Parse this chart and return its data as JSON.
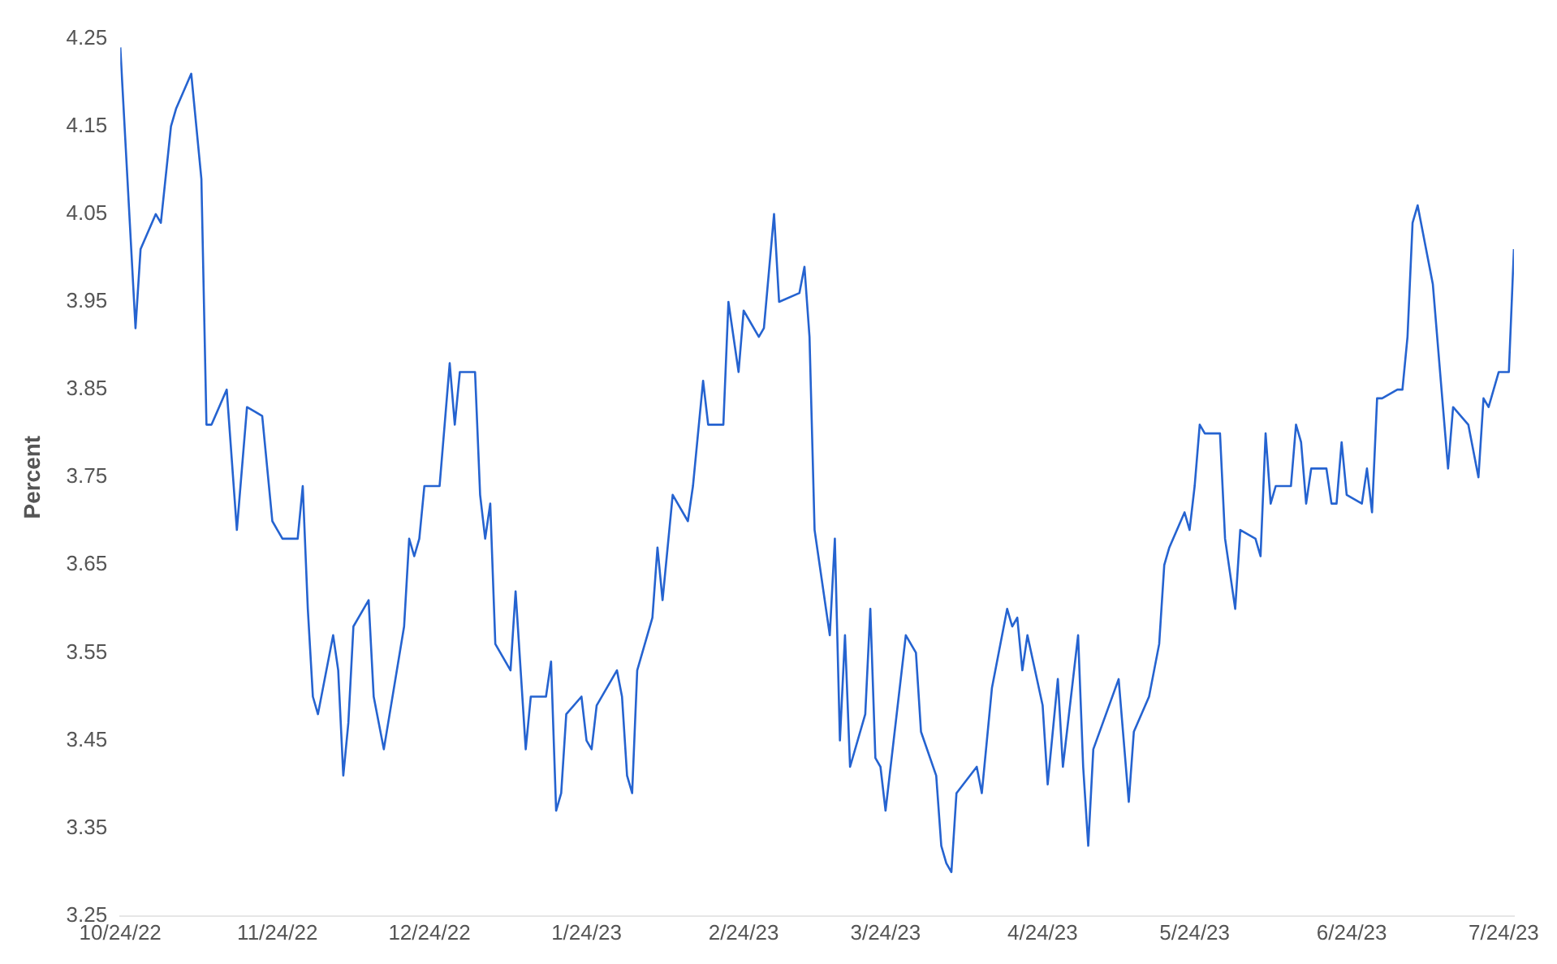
{
  "chart_data": {
    "type": "line",
    "ylabel": "Percent",
    "x": [
      "2022-10-24",
      "2022-10-27",
      "2022-10-28",
      "2022-10-31",
      "2022-11-01",
      "2022-11-03",
      "2022-11-04",
      "2022-11-07",
      "2022-11-09",
      "2022-11-10",
      "2022-11-11",
      "2022-11-14",
      "2022-11-16",
      "2022-11-18",
      "2022-11-21",
      "2022-11-23",
      "2022-11-24",
      "2022-11-25",
      "2022-11-28",
      "2022-11-29",
      "2022-11-30",
      "2022-12-01",
      "2022-12-02",
      "2022-12-05",
      "2022-12-06",
      "2022-12-07",
      "2022-12-08",
      "2022-12-09",
      "2022-12-12",
      "2022-12-13",
      "2022-12-15",
      "2022-12-19",
      "2022-12-20",
      "2022-12-21",
      "2022-12-22",
      "2022-12-23",
      "2022-12-26",
      "2022-12-28",
      "2022-12-29",
      "2022-12-30",
      "2023-01-02",
      "2023-01-03",
      "2023-01-04",
      "2023-01-05",
      "2023-01-06",
      "2023-01-09",
      "2023-01-10",
      "2023-01-12",
      "2023-01-13",
      "2023-01-16",
      "2023-01-17",
      "2023-01-18",
      "2023-01-19",
      "2023-01-20",
      "2023-01-23",
      "2023-01-24",
      "2023-01-25",
      "2023-01-26",
      "2023-01-30",
      "2023-01-31",
      "2023-02-01",
      "2023-02-02",
      "2023-02-03",
      "2023-02-06",
      "2023-02-07",
      "2023-02-08",
      "2023-02-10",
      "2023-02-13",
      "2023-02-14",
      "2023-02-16",
      "2023-02-17",
      "2023-02-20",
      "2023-02-21",
      "2023-02-23",
      "2023-02-24",
      "2023-02-27",
      "2023-02-28",
      "2023-03-02",
      "2023-03-03",
      "2023-03-07",
      "2023-03-08",
      "2023-03-09",
      "2023-03-10",
      "2023-03-13",
      "2023-03-14",
      "2023-03-15",
      "2023-03-16",
      "2023-03-17",
      "2023-03-20",
      "2023-03-21",
      "2023-03-22",
      "2023-03-23",
      "2023-03-24",
      "2023-03-28",
      "2023-03-30",
      "2023-03-31",
      "2023-04-03",
      "2023-04-04",
      "2023-04-05",
      "2023-04-06",
      "2023-04-07",
      "2023-04-11",
      "2023-04-12",
      "2023-04-14",
      "2023-04-17",
      "2023-04-18",
      "2023-04-19",
      "2023-04-20",
      "2023-04-21",
      "2023-04-24",
      "2023-04-25",
      "2023-04-27",
      "2023-04-28",
      "2023-05-01",
      "2023-05-02",
      "2023-05-03",
      "2023-05-04",
      "2023-05-09",
      "2023-05-11",
      "2023-05-12",
      "2023-05-15",
      "2023-05-17",
      "2023-05-18",
      "2023-05-19",
      "2023-05-22",
      "2023-05-23",
      "2023-05-24",
      "2023-05-25",
      "2023-05-26",
      "2023-05-29",
      "2023-05-30",
      "2023-06-01",
      "2023-06-02",
      "2023-06-05",
      "2023-06-06",
      "2023-06-07",
      "2023-06-08",
      "2023-06-09",
      "2023-06-12",
      "2023-06-13",
      "2023-06-14",
      "2023-06-15",
      "2023-06-16",
      "2023-06-19",
      "2023-06-20",
      "2023-06-21",
      "2023-06-22",
      "2023-06-23",
      "2023-06-26",
      "2023-06-27",
      "2023-06-28",
      "2023-06-29",
      "2023-06-30",
      "2023-07-03",
      "2023-07-04",
      "2023-07-05",
      "2023-07-06",
      "2023-07-07",
      "2023-07-10",
      "2023-07-13",
      "2023-07-14",
      "2023-07-17",
      "2023-07-19",
      "2023-07-20",
      "2023-07-21",
      "2023-07-23",
      "2023-07-24",
      "2023-07-25",
      "2023-07-26"
    ],
    "series": [
      {
        "color": "#2563d0",
        "values": [
          4.24,
          3.92,
          4.01,
          4.05,
          4.04,
          4.15,
          4.17,
          4.21,
          4.09,
          3.81,
          3.81,
          3.85,
          3.69,
          3.83,
          3.82,
          3.7,
          3.69,
          3.68,
          3.68,
          3.74,
          3.6,
          3.5,
          3.48,
          3.57,
          3.53,
          3.41,
          3.47,
          3.58,
          3.61,
          3.5,
          3.44,
          3.58,
          3.68,
          3.66,
          3.68,
          3.74,
          3.74,
          3.88,
          3.81,
          3.87,
          3.87,
          3.73,
          3.68,
          3.72,
          3.56,
          3.53,
          3.62,
          3.44,
          3.5,
          3.5,
          3.54,
          3.37,
          3.39,
          3.48,
          3.5,
          3.45,
          3.44,
          3.49,
          3.53,
          3.5,
          3.41,
          3.39,
          3.53,
          3.59,
          3.67,
          3.61,
          3.73,
          3.7,
          3.74,
          3.86,
          3.81,
          3.81,
          3.95,
          3.87,
          3.94,
          3.91,
          3.92,
          4.05,
          3.95,
          3.96,
          3.99,
          3.91,
          3.69,
          3.57,
          3.68,
          3.45,
          3.57,
          3.42,
          3.48,
          3.6,
          3.43,
          3.42,
          3.37,
          3.57,
          3.55,
          3.46,
          3.41,
          3.33,
          3.31,
          3.3,
          3.39,
          3.42,
          3.39,
          3.51,
          3.6,
          3.58,
          3.59,
          3.53,
          3.57,
          3.49,
          3.4,
          3.52,
          3.42,
          3.57,
          3.42,
          3.33,
          3.44,
          3.52,
          3.38,
          3.46,
          3.5,
          3.56,
          3.65,
          3.67,
          3.71,
          3.69,
          3.74,
          3.81,
          3.8,
          3.8,
          3.68,
          3.6,
          3.69,
          3.68,
          3.66,
          3.8,
          3.72,
          3.74,
          3.74,
          3.81,
          3.79,
          3.72,
          3.76,
          3.76,
          3.72,
          3.72,
          3.79,
          3.73,
          3.72,
          3.76,
          3.71,
          3.84,
          3.84,
          3.85,
          3.85,
          3.91,
          4.04,
          4.06,
          3.97,
          3.76,
          3.83,
          3.81,
          3.75,
          3.84,
          3.83,
          3.87,
          3.87,
          3.87,
          4.01
        ]
      }
    ],
    "xlim": [
      "2022-10-24",
      "2023-07-26"
    ],
    "xticks": [
      {
        "value": "2022-10-24",
        "label": "10/24/22"
      },
      {
        "value": "2022-11-24",
        "label": "11/24/22"
      },
      {
        "value": "2022-12-24",
        "label": "12/24/22"
      },
      {
        "value": "2023-01-24",
        "label": "1/24/23"
      },
      {
        "value": "2023-02-24",
        "label": "2/24/23"
      },
      {
        "value": "2023-03-24",
        "label": "3/24/23"
      },
      {
        "value": "2023-04-24",
        "label": "4/24/23"
      },
      {
        "value": "2023-05-24",
        "label": "5/24/23"
      },
      {
        "value": "2023-06-24",
        "label": "6/24/23"
      },
      {
        "value": "2023-07-24",
        "label": "7/24/23"
      }
    ],
    "ylim": [
      3.25,
      4.25
    ],
    "yticks": [
      3.25,
      3.35,
      3.45,
      3.55,
      3.65,
      3.75,
      3.85,
      3.95,
      4.05,
      4.15,
      4.25
    ],
    "grid": false,
    "legend": false,
    "marker": "none",
    "line_style": "solid"
  }
}
